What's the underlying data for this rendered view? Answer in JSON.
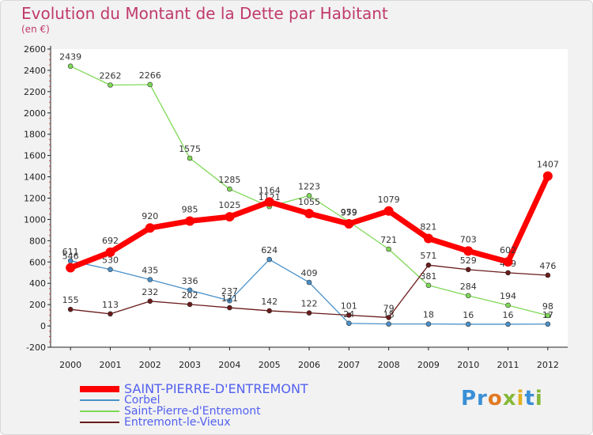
{
  "title": "Evolution du Montant de la Dette par Habitant",
  "subtitle": "(en €)",
  "logo": {
    "text": "Proxiti"
  },
  "chart_data": {
    "type": "line",
    "title": "Evolution du Montant de la Dette par Habitant",
    "subtitle": "(en €)",
    "x": [
      "2000",
      "2001",
      "2002",
      "2003",
      "2004",
      "2005",
      "2006",
      "2007",
      "2008",
      "2009",
      "2010",
      "2011",
      "2012"
    ],
    "ylim": [
      -200,
      2600
    ],
    "yticks": [
      -200,
      0,
      200,
      400,
      600,
      800,
      1000,
      1200,
      1400,
      1600,
      1800,
      2000,
      2200,
      2400,
      2600
    ],
    "grid": false,
    "legend": "bottom-left",
    "series": [
      {
        "name": "Corbel",
        "color": "#4a90c8",
        "values": [
          611,
          530,
          435,
          336,
          237,
          624,
          409,
          24,
          18,
          18,
          16,
          16,
          17
        ],
        "labels": [
          "611",
          "530",
          "435",
          "336",
          "237",
          "624",
          "409",
          "24",
          "18",
          "18",
          "16",
          "16",
          "17"
        ]
      },
      {
        "name": "Saint-Pierre-d'Entremont",
        "color": "#7ed957",
        "values": [
          2439,
          2262,
          2266,
          1575,
          1285,
          1121,
          1223,
          979,
          721,
          381,
          284,
          194,
          98
        ],
        "labels": [
          "2439",
          "2262",
          "2266",
          "1575",
          "1285",
          "1121",
          "1223",
          "979",
          "721",
          "381",
          "284",
          "194",
          "98"
        ]
      },
      {
        "name": "Entremont-le-Vieux",
        "color": "#6a1a1a",
        "values": [
          155,
          113,
          232,
          202,
          171,
          142,
          122,
          101,
          79,
          571,
          529,
          499,
          476
        ],
        "labels": [
          "155",
          "113",
          "232",
          "202",
          "171",
          "142",
          "122",
          "101",
          "79",
          "571",
          "529",
          "499",
          "476"
        ]
      },
      {
        "name": "SAINT-PIERRE-D'ENTREMONT",
        "color": "#ff0000",
        "primary": true,
        "values": [
          546,
          692,
          920,
          985,
          1025,
          1164,
          1055,
          959,
          1079,
          821,
          703,
          602,
          1407
        ],
        "labels": [
          "546",
          "692",
          "920",
          "985",
          "1025",
          "1164",
          "1055",
          "959",
          "1079",
          "821",
          "703",
          "602",
          "1407"
        ]
      }
    ],
    "legend_order": [
      "SAINT-PIERRE-D'ENTREMONT",
      "Corbel",
      "Saint-Pierre-d'Entremont",
      "Entremont-le-Vieux"
    ]
  }
}
